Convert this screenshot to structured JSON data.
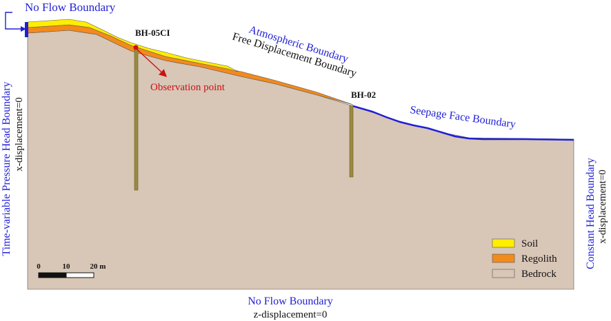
{
  "boundaries": {
    "top_left": "No Flow Boundary",
    "atmospheric": "Atmospheric Boundary",
    "free_displacement": "Free Displacement Boundary",
    "seepage": "Seepage Face Boundary",
    "bottom_flow": "No Flow Boundary",
    "bottom_disp": "z-displacement=0",
    "left_head": "Time-variable Pressure Head Boundary",
    "left_disp": "x-displacement=0",
    "right_head": "Constant Head Boundary",
    "right_disp": "x-displacement=0"
  },
  "boreholes": {
    "bh1": "BH-05CI",
    "bh2": "BH-02",
    "observation": "Observation point"
  },
  "legend": {
    "items": [
      {
        "label": "Soil",
        "color": "#ffee00"
      },
      {
        "label": "Regolith",
        "color": "#f28a1c"
      },
      {
        "label": "Bedrock",
        "color": "#d8c6b7"
      }
    ]
  },
  "scale": {
    "ticks": [
      "0",
      "10",
      "20 m"
    ]
  },
  "colors": {
    "boundary_blue": "#1f1fd6",
    "annotation_red": "#cc1111"
  }
}
